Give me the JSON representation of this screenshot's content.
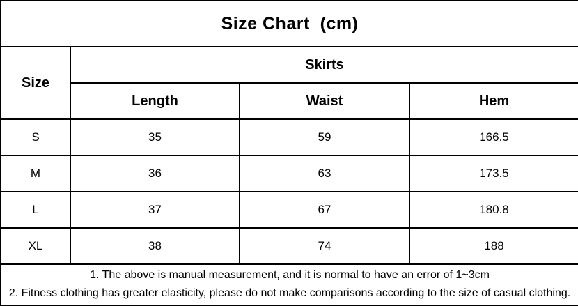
{
  "header": {
    "title": "Size Chart  (cm)"
  },
  "chart_data": {
    "type": "table",
    "title": "Size Chart (cm)",
    "unit": "cm",
    "group_header": "Skirts",
    "size_column_header": "Size",
    "columns": [
      "Length",
      "Waist",
      "Hem"
    ],
    "rows": [
      {
        "size": "S",
        "length": "35",
        "waist": "59",
        "hem": "166.5"
      },
      {
        "size": "M",
        "length": "36",
        "waist": "63",
        "hem": "173.5"
      },
      {
        "size": "L",
        "length": "37",
        "waist": "67",
        "hem": "180.8"
      },
      {
        "size": "XL",
        "length": "38",
        "waist": "74",
        "hem": "188"
      }
    ]
  },
  "notes": [
    "1. The above is manual measurement, and it is normal to have an error of 1~3cm",
    "2. Fitness clothing has greater elasticity, please do not make comparisons according to the size of casual clothing."
  ],
  "colors": {
    "background": "#ffffff",
    "border": "#000000",
    "text": "#000000"
  }
}
